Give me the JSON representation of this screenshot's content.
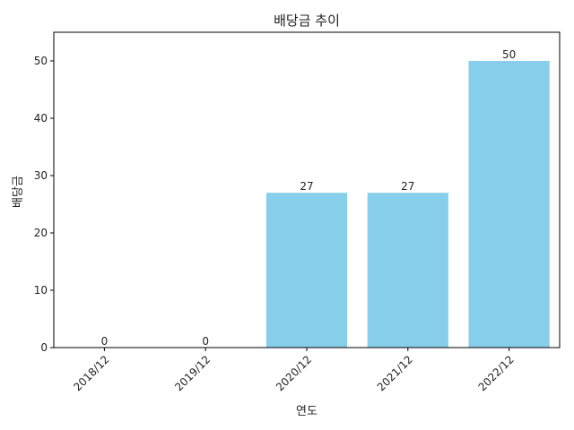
{
  "chart_data": {
    "type": "bar",
    "title": "배당금 추이",
    "xlabel": "연도",
    "ylabel": "배당금",
    "categories": [
      "2018/12",
      "2019/12",
      "2020/12",
      "2021/12",
      "2022/12"
    ],
    "values": [
      0,
      0,
      27,
      27,
      50
    ],
    "data_labels": [
      "0",
      "0",
      "27",
      "27",
      "50"
    ],
    "ylim": [
      0,
      55
    ],
    "yticks": [
      0,
      10,
      20,
      30,
      40,
      50
    ],
    "bar_color": "#87CEEB",
    "grid": false,
    "legend": "none"
  }
}
